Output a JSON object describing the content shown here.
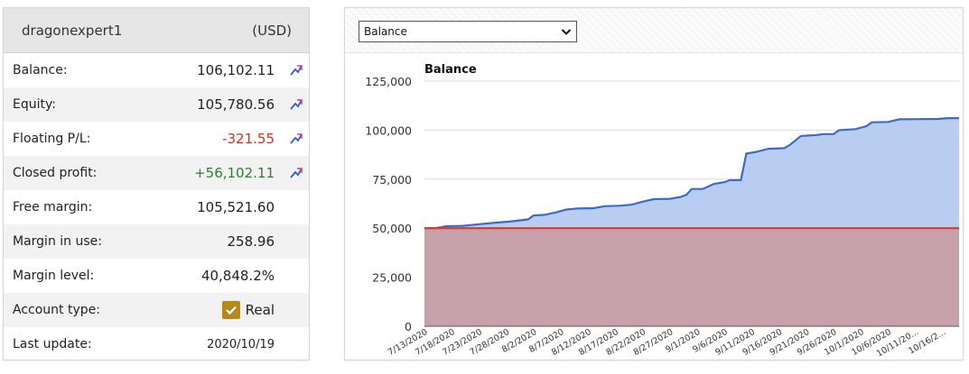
{
  "account": {
    "name": "dragonexpert1",
    "currency": "(USD)",
    "rows": [
      {
        "label": "Balance:",
        "value": "106,102.11",
        "icon": "chart-line-icon"
      },
      {
        "label": "Equity:",
        "value": "105,780.56",
        "icon": "chart-line-icon"
      },
      {
        "label": "Floating P/L:",
        "value": "-321.55",
        "icon": "chart-line-icon"
      },
      {
        "label": "Closed profit:",
        "value": "+56,102.11",
        "icon": "chart-line-icon"
      },
      {
        "label": "Free margin:",
        "value": "105,521.60"
      },
      {
        "label": "Margin in use:",
        "value": "258.96"
      },
      {
        "label": "Margin level:",
        "value": "40,848.2%"
      },
      {
        "label": "Account type:",
        "value": "Real",
        "icon": "checkbox-checked-icon"
      },
      {
        "label": "Last update:",
        "value": "2020/10/19"
      }
    ]
  },
  "chart_panel": {
    "select_value": "Balance"
  },
  "colors": {
    "balance_line": "#3b6cc9",
    "balance_fill": "#b9cdf0",
    "deposit_line": "#d93b2b",
    "deposit_fill": "#c6a0ab",
    "negative": "#c0392b",
    "positive": "#2e7d32",
    "checkbox": "#b68a1a"
  },
  "chart_data": {
    "type": "area",
    "title": "Balance",
    "ylim": [
      0,
      125000
    ],
    "yticks": [
      0,
      25000,
      50000,
      75000,
      100000,
      125000
    ],
    "ytick_labels": [
      "0",
      "25,000",
      "50,000",
      "75,000",
      "100,000",
      "125,000"
    ],
    "xtick_labels": [
      "7/13/2020",
      "7/18/2020",
      "7/23/2020",
      "7/28/2020",
      "8/2/2020",
      "8/7/2020",
      "8/12/2020",
      "8/17/2020",
      "8/22/2020",
      "8/27/2020",
      "9/1/2020",
      "9/6/2020",
      "9/11/2020",
      "9/16/2020",
      "9/21/2020",
      "9/26/2020",
      "10/1/2020",
      "10/6/2020",
      "10/11/20...",
      "10/16/2..."
    ],
    "x_start": "2020-07-13",
    "x_end": "2020-10-19",
    "grid": true,
    "legend": "none",
    "series": [
      {
        "values": [
          [
            "2020-07-13",
            50000
          ],
          [
            "2020-07-15",
            50000
          ],
          [
            "2020-07-17",
            51000
          ],
          [
            "2020-07-20",
            51200
          ],
          [
            "2020-07-23",
            52000
          ],
          [
            "2020-07-26",
            52800
          ],
          [
            "2020-07-29",
            53500
          ],
          [
            "2020-08-01",
            54500
          ],
          [
            "2020-08-02",
            56500
          ],
          [
            "2020-08-04",
            56800
          ],
          [
            "2020-08-06",
            58000
          ],
          [
            "2020-08-08",
            59500
          ],
          [
            "2020-08-10",
            60000
          ],
          [
            "2020-08-13",
            60200
          ],
          [
            "2020-08-15",
            61200
          ],
          [
            "2020-08-18",
            61500
          ],
          [
            "2020-08-20",
            62000
          ],
          [
            "2020-08-22",
            63500
          ],
          [
            "2020-08-24",
            64800
          ],
          [
            "2020-08-27",
            65000
          ],
          [
            "2020-08-29",
            66000
          ],
          [
            "2020-08-30",
            67000
          ],
          [
            "2020-08-31",
            70000
          ],
          [
            "2020-09-02",
            70000
          ],
          [
            "2020-09-04",
            72500
          ],
          [
            "2020-09-06",
            73500
          ],
          [
            "2020-09-07",
            74500
          ],
          [
            "2020-09-09",
            74500
          ],
          [
            "2020-09-10",
            88000
          ],
          [
            "2020-09-12",
            89000
          ],
          [
            "2020-09-14",
            90500
          ],
          [
            "2020-09-17",
            90800
          ],
          [
            "2020-09-18",
            92500
          ],
          [
            "2020-09-20",
            97000
          ],
          [
            "2020-09-23",
            97500
          ],
          [
            "2020-09-24",
            98000
          ],
          [
            "2020-09-26",
            98000
          ],
          [
            "2020-09-27",
            100000
          ],
          [
            "2020-09-30",
            100500
          ],
          [
            "2020-10-02",
            102000
          ],
          [
            "2020-10-03",
            104000
          ],
          [
            "2020-10-06",
            104200
          ],
          [
            "2020-10-08",
            105500
          ],
          [
            "2020-10-15",
            105700
          ],
          [
            "2020-10-17",
            106100
          ],
          [
            "2020-10-19",
            106102
          ]
        ]
      },
      {
        "values": [
          [
            "2020-07-13",
            50000
          ],
          [
            "2020-10-19",
            50000
          ]
        ]
      }
    ]
  }
}
